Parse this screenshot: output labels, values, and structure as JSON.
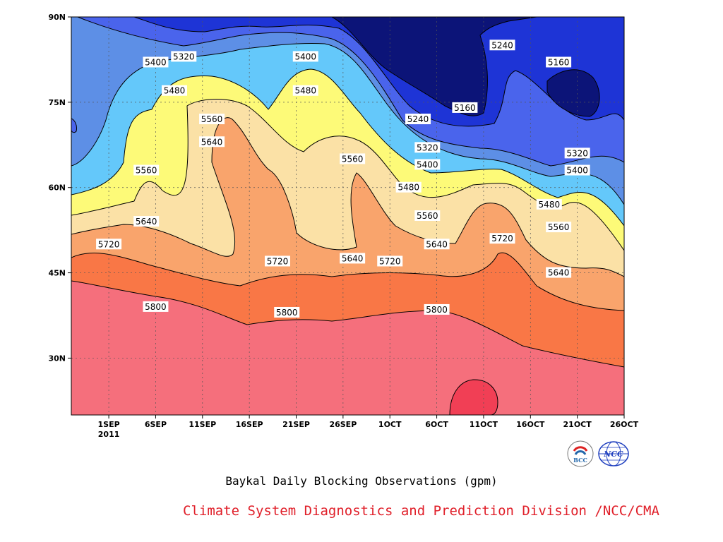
{
  "chart_data": {
    "type": "heatmap",
    "title": "Baykal Daily Blocking Observations (gpm)",
    "subtitle": "Climate System Diagnostics and Prediction Division /NCC/CMA",
    "x_ticks": [
      "1SEP",
      "6SEP",
      "11SEP",
      "16SEP",
      "21SEP",
      "26SEP",
      "1OCT",
      "6OCT",
      "11OCT",
      "16OCT",
      "21OCT",
      "26OCT"
    ],
    "x_year": "2011",
    "y_ticks": [
      "30N",
      "45N",
      "60N",
      "75N",
      "90N"
    ],
    "xlim": [
      "2011-08-28",
      "2011-10-26"
    ],
    "ylim": [
      20,
      90
    ],
    "grid": true,
    "contour_levels": [
      5160,
      5240,
      5320,
      5400,
      5480,
      5560,
      5640,
      5720,
      5800,
      5880
    ],
    "contour_labels": [
      {
        "value": "5320",
        "date": "2011-09-09",
        "lat": 83
      },
      {
        "value": "5400",
        "date": "2011-09-06",
        "lat": 82
      },
      {
        "value": "5400",
        "date": "2011-09-22",
        "lat": 83
      },
      {
        "value": "5480",
        "date": "2011-09-08",
        "lat": 77
      },
      {
        "value": "5480",
        "date": "2011-09-22",
        "lat": 77
      },
      {
        "value": "5560",
        "date": "2011-09-12",
        "lat": 72
      },
      {
        "value": "5640",
        "date": "2011-09-12",
        "lat": 68
      },
      {
        "value": "5560",
        "date": "2011-09-27",
        "lat": 65
      },
      {
        "value": "5560",
        "date": "2011-09-05",
        "lat": 63
      },
      {
        "value": "5640",
        "date": "2011-09-05",
        "lat": 54
      },
      {
        "value": "5720",
        "date": "2011-09-01",
        "lat": 50
      },
      {
        "value": "5720",
        "date": "2011-09-19",
        "lat": 47
      },
      {
        "value": "5640",
        "date": "2011-09-27",
        "lat": 47.5
      },
      {
        "value": "5720",
        "date": "2011-10-01",
        "lat": 47
      },
      {
        "value": "5800",
        "date": "2011-09-06",
        "lat": 39
      },
      {
        "value": "5800",
        "date": "2011-09-20",
        "lat": 38
      },
      {
        "value": "5800",
        "date": "2011-10-06",
        "lat": 38.5
      },
      {
        "value": "5240",
        "date": "2011-10-04",
        "lat": 72
      },
      {
        "value": "5160",
        "date": "2011-10-09",
        "lat": 74
      },
      {
        "value": "5320",
        "date": "2011-10-05",
        "lat": 67
      },
      {
        "value": "5400",
        "date": "2011-10-05",
        "lat": 64
      },
      {
        "value": "5480",
        "date": "2011-10-03",
        "lat": 60
      },
      {
        "value": "5560",
        "date": "2011-10-05",
        "lat": 55
      },
      {
        "value": "5640",
        "date": "2011-10-06",
        "lat": 50
      },
      {
        "value": "5720",
        "date": "2011-10-13",
        "lat": 51
      },
      {
        "value": "5240",
        "date": "2011-10-13",
        "lat": 85
      },
      {
        "value": "5160",
        "date": "2011-10-19",
        "lat": 82
      },
      {
        "value": "5320",
        "date": "2011-10-21",
        "lat": 66
      },
      {
        "value": "5400",
        "date": "2011-10-21",
        "lat": 63
      },
      {
        "value": "5480",
        "date": "2011-10-18",
        "lat": 57
      },
      {
        "value": "5560",
        "date": "2011-10-19",
        "lat": 53
      },
      {
        "value": "5640",
        "date": "2011-10-19",
        "lat": 45
      }
    ]
  },
  "colors": {
    "band_5160": "#0c1478",
    "band_5240": "#1e34d6",
    "band_5320": "#4a64ec",
    "band_5400": "#5d8fe6",
    "band_5480": "#64c8fa",
    "band_5560": "#fdfa78",
    "band_5640": "#fbe1a6",
    "band_5720": "#f9a46c",
    "band_5800": "#f97746",
    "band_5880": "#f56f7c",
    "band_high": "#f13f55",
    "credit": "#e0202a"
  },
  "logos": [
    "BCC",
    "NCC"
  ]
}
